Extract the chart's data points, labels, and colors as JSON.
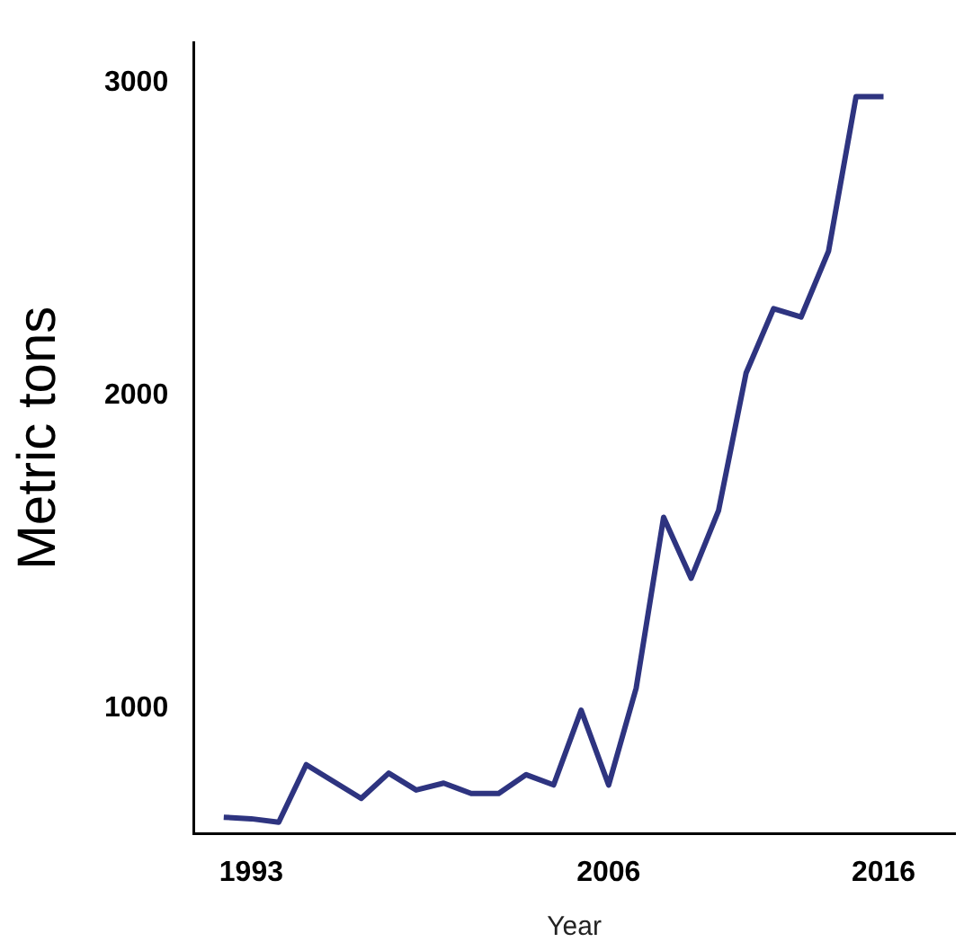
{
  "chart_data": {
    "type": "line",
    "xlabel": "Year",
    "ylabel": "Metric tons",
    "x": [
      1992,
      1993,
      1994,
      1995,
      1996,
      1997,
      1998,
      1999,
      2000,
      2001,
      2002,
      2003,
      2004,
      2005,
      2006,
      2007,
      2008,
      2009,
      2010,
      2011,
      2012,
      2013,
      2014,
      2015,
      2016
    ],
    "series": [
      {
        "color": "#2e3480",
        "values": [
          653,
          648,
          637,
          821,
          767,
          713,
          794,
          740,
          762,
          729,
          729,
          789,
          756,
          995,
          756,
          1065,
          1612,
          1417,
          1634,
          2073,
          2279,
          2252,
          2463,
          2957,
          2957
        ]
      }
    ],
    "xlim": [
      1990.9,
      2018.6
    ],
    "xticks": [
      1993,
      2006,
      2016
    ],
    "ylim": [
      600,
      3130
    ],
    "yticks": [
      1000,
      2000,
      3000
    ],
    "grid": false,
    "legend": false,
    "marker": "none",
    "line_style": "solid"
  }
}
